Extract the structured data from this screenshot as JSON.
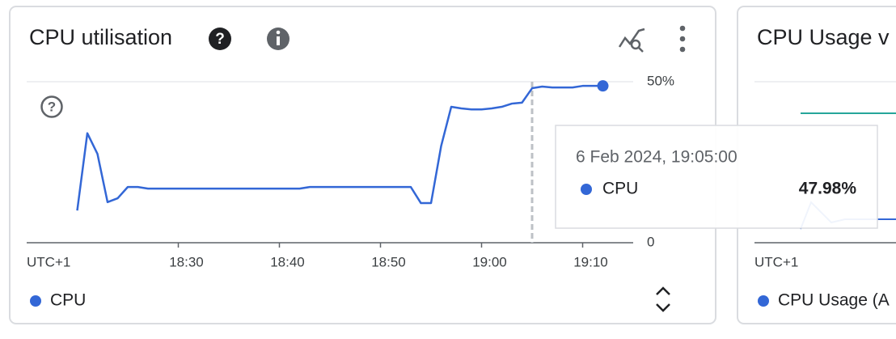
{
  "card": {
    "title": "CPU utilisation"
  },
  "chart_data": {
    "type": "line",
    "timezone_label": "UTC+1",
    "x": [
      "18:20",
      "18:21",
      "18:22",
      "18:23",
      "18:24",
      "18:25",
      "18:26",
      "18:27",
      "18:28",
      "18:29",
      "18:30",
      "18:31",
      "18:32",
      "18:33",
      "18:34",
      "18:35",
      "18:36",
      "18:37",
      "18:38",
      "18:39",
      "18:40",
      "18:41",
      "18:42",
      "18:43",
      "18:44",
      "18:45",
      "18:46",
      "18:47",
      "18:48",
      "18:49",
      "18:50",
      "18:51",
      "18:52",
      "18:53",
      "18:54",
      "18:55",
      "18:56",
      "18:57",
      "18:58",
      "18:59",
      "19:00",
      "19:01",
      "19:02",
      "19:03",
      "19:04",
      "19:05",
      "19:06",
      "19:07",
      "19:08",
      "19:09",
      "19:10",
      "19:11",
      "19:12"
    ],
    "series": [
      {
        "name": "CPU",
        "color": "#3367d6",
        "values": [
          10,
          34,
          27.6,
          12.6,
          13.8,
          17.3,
          17.3,
          16.8,
          16.8,
          16.8,
          16.8,
          16.8,
          16.8,
          16.8,
          16.8,
          16.8,
          16.8,
          16.8,
          16.8,
          16.8,
          16.8,
          16.8,
          16.8,
          17.3,
          17.3,
          17.3,
          17.3,
          17.3,
          17.3,
          17.3,
          17.3,
          17.3,
          17.3,
          17.3,
          12.3,
          12.3,
          30,
          42.2,
          41.7,
          41.4,
          41.4,
          41.7,
          42.2,
          43.2,
          43.5,
          47.98,
          48.5,
          48.2,
          48.2,
          48.2,
          48.7,
          48.7,
          48.7
        ]
      }
    ],
    "xlim": [
      "18:15",
      "19:15"
    ],
    "xticks": [
      "18:30",
      "18:40",
      "18:50",
      "19:00",
      "19:10"
    ],
    "ylim": [
      0,
      50
    ],
    "yticks": [
      0,
      {
        "value": 50,
        "label": "50%"
      }
    ],
    "grid": true
  },
  "tooltip": {
    "date": "6 Feb 2024, 19:05:00",
    "series": "CPU",
    "value": "47.98%"
  },
  "second_card": {
    "title": "CPU Usage v",
    "timezone_label": "UTC+1",
    "legend": "CPU Usage (A"
  }
}
